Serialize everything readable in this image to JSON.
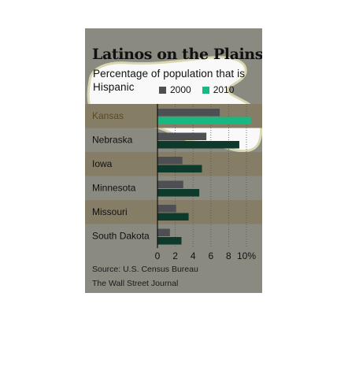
{
  "header": {
    "title": "Latinos on the Plains",
    "subtitle": "Percentage of population that is Hispanic"
  },
  "legend": [
    {
      "label": "2000",
      "color": "#4d4f52"
    },
    {
      "label": "2010",
      "color": "#18b883"
    }
  ],
  "footer": {
    "source": "Source: U.S. Census Bureau",
    "publisher": "The Wall Street Journal"
  },
  "chart_data": {
    "type": "bar",
    "orientation": "horizontal",
    "categories": [
      "Kansas",
      "Nebraska",
      "Iowa",
      "Minnesota",
      "Missouri",
      "South Dakota"
    ],
    "series": [
      {
        "name": "2000",
        "values": [
          7.0,
          5.5,
          2.8,
          2.9,
          2.1,
          1.4
        ],
        "color": "#4d4f52"
      },
      {
        "name": "2010",
        "values": [
          10.5,
          9.2,
          5.0,
          4.7,
          3.5,
          2.7
        ],
        "color": "#0d3a2a"
      }
    ],
    "highlight": {
      "category": "Kansas",
      "series": "2010",
      "color": "#18b883"
    },
    "xlim": [
      0,
      10
    ],
    "xticks": [
      "0",
      "2",
      "4",
      "6",
      "8",
      "10%"
    ],
    "grid": "vertical dotted",
    "legend_position": "top"
  }
}
